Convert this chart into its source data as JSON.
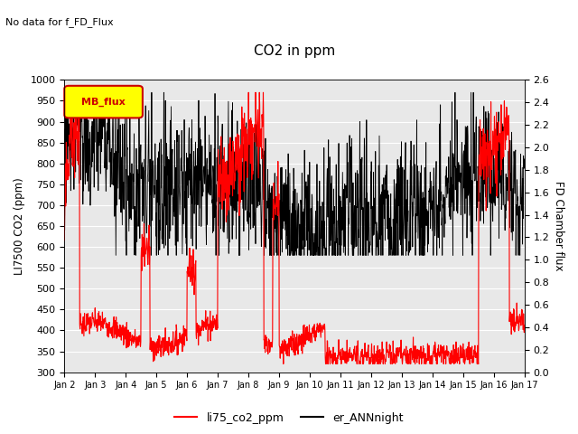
{
  "title": "CO2 in ppm",
  "subtitle": "No data for f_FD_Flux",
  "ylabel_left": "LI7500 CO2 (ppm)",
  "ylabel_right": "FD Chamber flux",
  "ylim_left": [
    300,
    1000
  ],
  "ylim_right": [
    0.0,
    2.6
  ],
  "yticks_left": [
    300,
    350,
    400,
    450,
    500,
    550,
    600,
    650,
    700,
    750,
    800,
    850,
    900,
    950,
    1000
  ],
  "yticks_right": [
    0.0,
    0.2,
    0.4,
    0.6,
    0.8,
    1.0,
    1.2,
    1.4,
    1.6,
    1.8,
    2.0,
    2.2,
    2.4,
    2.6
  ],
  "xtick_labels": [
    "Jan 2",
    "Jan 3",
    "Jan 4",
    "Jan 5",
    "Jan 6",
    "Jan 7",
    "Jan 8",
    "Jan 9",
    "Jan 10",
    "Jan 11",
    "Jan 12",
    "Jan 13",
    "Jan 14",
    "Jan 15",
    "Jan 16",
    "Jan 17"
  ],
  "legend_label_red": "li75_co2_ppm",
  "legend_label_black": "er_ANNnight",
  "legend_box_label": "MB_flux",
  "line_color_red": "#ff0000",
  "line_color_black": "#000000",
  "legend_box_facecolor": "#ffff00",
  "legend_box_edgecolor": "#cc0000",
  "legend_box_textcolor": "#cc0000",
  "axes_facecolor": "#e8e8e8",
  "fig_facecolor": "#ffffff",
  "grid_color": "#ffffff"
}
